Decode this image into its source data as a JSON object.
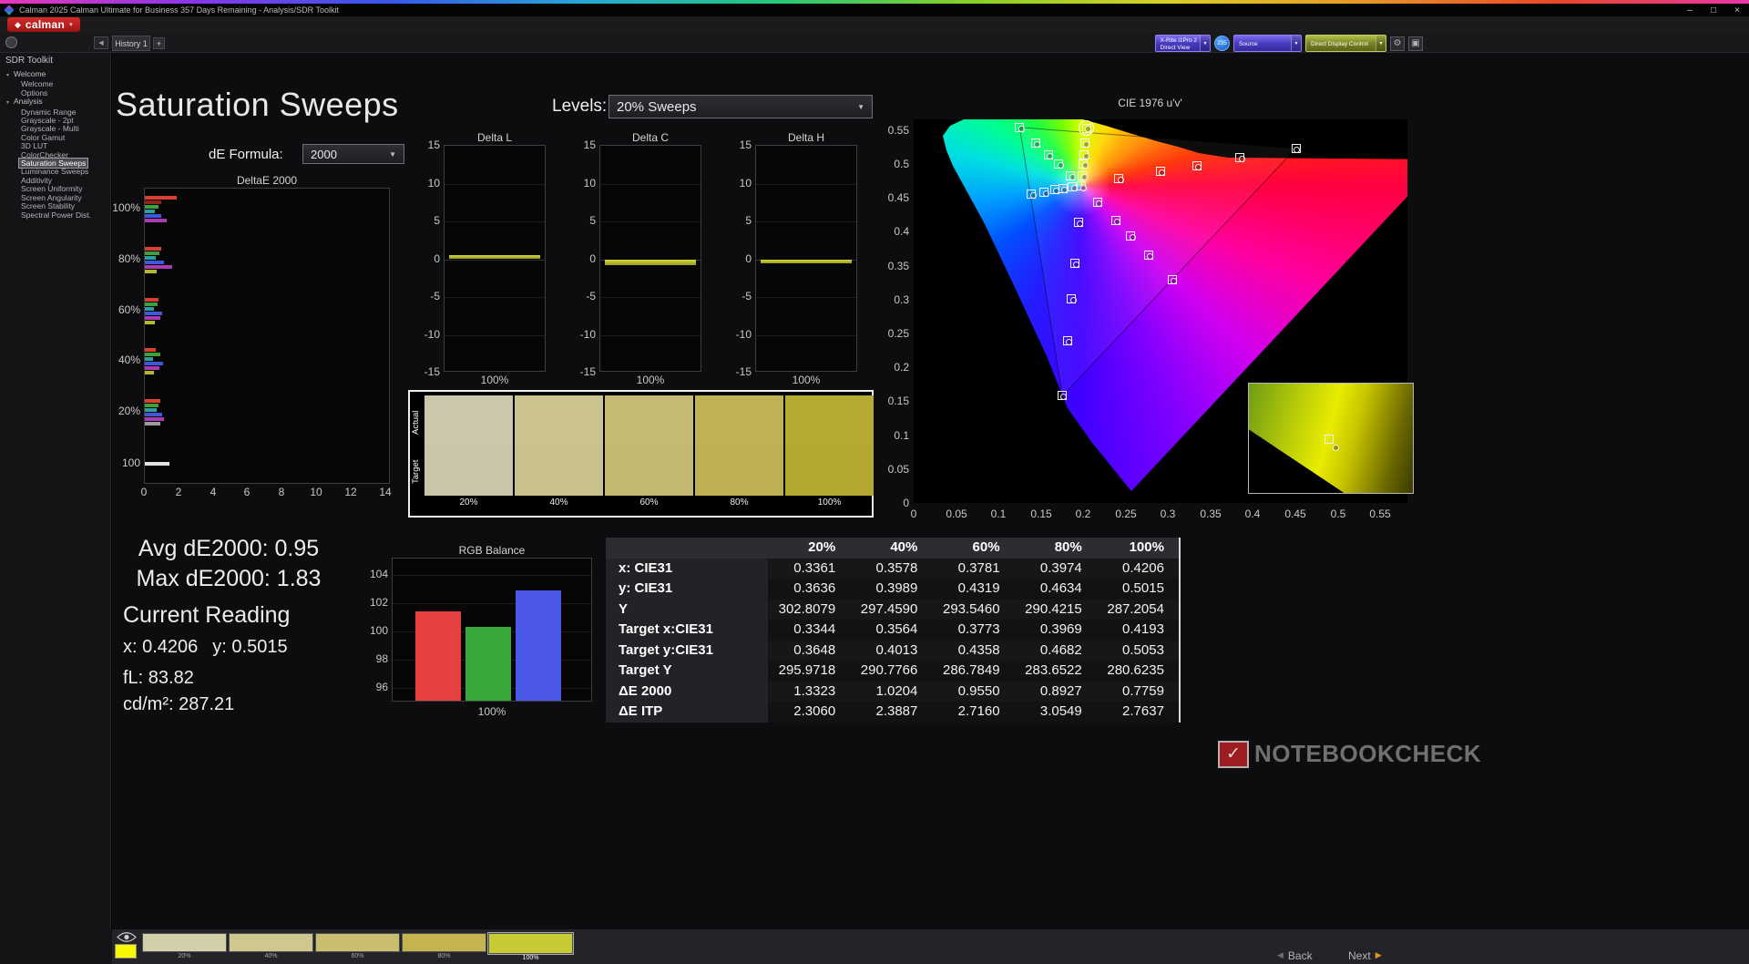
{
  "titlebar": {
    "title": "Calman 2025 Calman Ultimate for Business 357 Days Remaining  - Analysis/SDR Toolkit",
    "minimize": "–",
    "maximize": "□",
    "close": "×"
  },
  "logobar": {
    "brand": "calman",
    "dropdown_arrow": "▾"
  },
  "topstrip": {
    "collapse_arrow": "◀",
    "history_tab": "History 1",
    "add_tab": "+",
    "meter": {
      "line1": "X-Rite i1Pro 2",
      "line2": "Direct View"
    },
    "badge": "235",
    "source": "Source",
    "display_control": "Direct Display Control",
    "gear": "⚙",
    "pattern": "▣"
  },
  "sidebar": {
    "title": "SDR Toolkit",
    "selected": "Saturation Sweeps",
    "groups": [
      {
        "label": "Welcome",
        "items": [
          "Welcome",
          "Options"
        ]
      },
      {
        "label": "Analysis",
        "items": [
          "Dynamic Range",
          "Grayscale - 2pt",
          "Grayscale - Multi",
          "Color Gamut",
          "3D LUT",
          "ColorChecker",
          "Saturation Sweeps",
          "Luminance Sweeps",
          "Additivity",
          "Screen Uniformity",
          "Screen Angularity",
          "Screen Stability",
          "Spectral Power Dist."
        ]
      }
    ]
  },
  "page": {
    "title": "Saturation Sweeps",
    "levels_label": "Levels:",
    "levels_value": "20% Sweeps",
    "de_label": "dE Formula:",
    "de_value": "2000"
  },
  "readings": {
    "avg": "Avg dE2000: 0.95",
    "max": "Max dE2000: 1.83",
    "heading": "Current Reading",
    "x": "x: 0.4206",
    "y": "y: 0.5015",
    "fl": "fL: 83.82",
    "cd": "cd/m²: 287.21"
  },
  "saturation_swatches": {
    "row_labels": [
      "Actual",
      "Target"
    ],
    "levels": [
      "20%",
      "40%",
      "60%",
      "80%",
      "100%"
    ],
    "actual_colors": [
      "#cbc7ac",
      "#cac28f",
      "#c5ba71",
      "#bfb254",
      "#b5ab33"
    ],
    "target_colors": [
      "#c9c5aa",
      "#c8c08d",
      "#c3b86f",
      "#bdb052",
      "#b3a931"
    ]
  },
  "table": {
    "header": [
      "20%",
      "40%",
      "60%",
      "80%",
      "100%"
    ],
    "rows": [
      {
        "label": "x: CIE31",
        "values": [
          "0.3361",
          "0.3578",
          "0.3781",
          "0.3974",
          "0.4206"
        ]
      },
      {
        "label": "y: CIE31",
        "values": [
          "0.3636",
          "0.3989",
          "0.4319",
          "0.4634",
          "0.5015"
        ]
      },
      {
        "label": "Y",
        "values": [
          "302.8079",
          "297.4590",
          "293.5460",
          "290.4215",
          "287.2054"
        ]
      },
      {
        "label": "Target x:CIE31",
        "values": [
          "0.3344",
          "0.3564",
          "0.3773",
          "0.3969",
          "0.4193"
        ]
      },
      {
        "label": "Target y:CIE31",
        "values": [
          "0.3648",
          "0.4013",
          "0.4358",
          "0.4682",
          "0.5053"
        ]
      },
      {
        "label": "Target Y",
        "values": [
          "295.9718",
          "290.7766",
          "286.7849",
          "283.6522",
          "280.6235"
        ]
      },
      {
        "label": "ΔE 2000",
        "values": [
          "1.3323",
          "1.0204",
          "0.9550",
          "0.8927",
          "0.7759"
        ]
      },
      {
        "label": "ΔE ITP",
        "values": [
          "2.3060",
          "2.3887",
          "2.7160",
          "3.0549",
          "2.7637"
        ]
      }
    ]
  },
  "chart_data": [
    {
      "type": "bar",
      "title": "DeltaE 2000",
      "orientation": "horizontal",
      "xlim": [
        0,
        14.3
      ],
      "x_ticks": [
        "0",
        "2",
        "4",
        "6",
        "8",
        "10",
        "12",
        "14"
      ],
      "groups": [
        {
          "label": "100%",
          "bars": [
            {
              "color": "#d84030",
              "value": 1.83
            },
            {
              "color": "#8e2418",
              "value": 0.95
            },
            {
              "color": "#3da03d",
              "value": 0.8
            },
            {
              "color": "#2f9e9e",
              "value": 0.58
            },
            {
              "color": "#3f58d8",
              "value": 0.95
            },
            {
              "color": "#aa3ab2",
              "value": 1.28
            }
          ]
        },
        {
          "label": "80%",
          "bars": [
            {
              "color": "#d84030",
              "value": 0.95
            },
            {
              "color": "#3da03d",
              "value": 0.85
            },
            {
              "color": "#2f9e9e",
              "value": 0.62
            },
            {
              "color": "#3f58d8",
              "value": 1.1
            },
            {
              "color": "#aa3ab2",
              "value": 1.58
            },
            {
              "color": "#b4b82e",
              "value": 0.7
            }
          ]
        },
        {
          "label": "60%",
          "bars": [
            {
              "color": "#d84030",
              "value": 0.8
            },
            {
              "color": "#3da03d",
              "value": 0.72
            },
            {
              "color": "#2f9e9e",
              "value": 0.55
            },
            {
              "color": "#3f58d8",
              "value": 1.0
            },
            {
              "color": "#aa3ab2",
              "value": 0.92
            },
            {
              "color": "#b4b82e",
              "value": 0.6
            }
          ]
        },
        {
          "label": "40%",
          "bars": [
            {
              "color": "#d84030",
              "value": 0.62
            },
            {
              "color": "#3da03d",
              "value": 0.88
            },
            {
              "color": "#2f9e9e",
              "value": 0.48
            },
            {
              "color": "#3f58d8",
              "value": 1.05
            },
            {
              "color": "#aa3ab2",
              "value": 0.82
            },
            {
              "color": "#b4b82e",
              "value": 0.52
            }
          ]
        },
        {
          "label": "20%",
          "bars": [
            {
              "color": "#d84030",
              "value": 0.92
            },
            {
              "color": "#3da03d",
              "value": 0.8
            },
            {
              "color": "#2f9e9e",
              "value": 0.7
            },
            {
              "color": "#3f58d8",
              "value": 1.02
            },
            {
              "color": "#aa3ab2",
              "value": 1.12
            },
            {
              "color": "#9c9c9c",
              "value": 0.88
            }
          ]
        },
        {
          "label": "100",
          "bars": [
            {
              "color": "#e4e4e4",
              "value": 1.45
            }
          ]
        }
      ]
    },
    {
      "type": "bar",
      "title": "Delta L",
      "ylim": [
        -15,
        15
      ],
      "y_ticks": [
        "15",
        "10",
        "5",
        "0",
        "-5",
        "-10",
        "-15"
      ],
      "x_label": "100%",
      "value": 0.6,
      "bar_color": "#b9bd2f"
    },
    {
      "type": "bar",
      "title": "Delta C",
      "ylim": [
        -15,
        15
      ],
      "y_ticks": [
        "15",
        "10",
        "5",
        "0",
        "-5",
        "-10",
        "-15"
      ],
      "x_label": "100%",
      "value": -0.8,
      "bar_color": "#b9bd2f"
    },
    {
      "type": "bar",
      "title": "Delta H",
      "ylim": [
        -15,
        15
      ],
      "y_ticks": [
        "15",
        "10",
        "5",
        "0",
        "-5",
        "-10",
        "-15"
      ],
      "x_label": "100%",
      "value": -0.55,
      "bar_color": "#b9bd2f"
    },
    {
      "type": "bar",
      "title": "RGB Balance",
      "ylim": [
        95,
        104.8
      ],
      "y_ticks": [
        "104",
        "102",
        "100",
        "98",
        "96"
      ],
      "x_label": "100%",
      "series": [
        {
          "name": "Red",
          "color": "#e64040",
          "value": 101.4
        },
        {
          "name": "Green",
          "color": "#3aa83a",
          "value": 100.3
        },
        {
          "name": "Blue",
          "color": "#4c58e8",
          "value": 102.9
        }
      ]
    },
    {
      "type": "scatter",
      "title": "CIE 1976 u'v'",
      "x_ticks": [
        "0",
        "0.05",
        "0.1",
        "0.15",
        "0.2",
        "0.25",
        "0.3",
        "0.35",
        "0.4",
        "0.45",
        "0.5",
        "0.55"
      ],
      "y_ticks": [
        "0.55",
        "0.5",
        "0.45",
        "0.4",
        "0.35",
        "0.3",
        "0.25",
        "0.2",
        "0.15",
        "0.1",
        "0.05",
        "0"
      ],
      "gamut_triangle": [
        [
          0.125,
          0.554
        ],
        [
          0.4507,
          0.5229
        ],
        [
          0.1754,
          0.1579
        ]
      ],
      "targets": [
        [
          0.198,
          0.468
        ],
        [
          0.242,
          0.478
        ],
        [
          0.291,
          0.489
        ],
        [
          0.334,
          0.498
        ],
        [
          0.385,
          0.509
        ],
        [
          0.451,
          0.523
        ],
        [
          0.185,
          0.483
        ],
        [
          0.171,
          0.5
        ],
        [
          0.159,
          0.514
        ],
        [
          0.144,
          0.531
        ],
        [
          0.125,
          0.554
        ],
        [
          0.194,
          0.414
        ],
        [
          0.19,
          0.354
        ],
        [
          0.186,
          0.301
        ],
        [
          0.181,
          0.239
        ],
        [
          0.175,
          0.158
        ],
        [
          0.187,
          0.466
        ],
        [
          0.176,
          0.464
        ],
        [
          0.166,
          0.462
        ],
        [
          0.154,
          0.459
        ],
        [
          0.139,
          0.456
        ],
        [
          0.217,
          0.444
        ],
        [
          0.238,
          0.417
        ],
        [
          0.256,
          0.394
        ],
        [
          0.277,
          0.366
        ],
        [
          0.305,
          0.33
        ],
        [
          0.199,
          0.483
        ],
        [
          0.2,
          0.5
        ],
        [
          0.201,
          0.514
        ],
        [
          0.202,
          0.531
        ],
        [
          0.204,
          0.553
        ]
      ],
      "measurements": [
        [
          0.2,
          0.465
        ],
        [
          0.244,
          0.476
        ],
        [
          0.293,
          0.487
        ],
        [
          0.336,
          0.496
        ],
        [
          0.387,
          0.507
        ],
        [
          0.452,
          0.521
        ],
        [
          0.187,
          0.481
        ],
        [
          0.173,
          0.498
        ],
        [
          0.161,
          0.512
        ],
        [
          0.146,
          0.529
        ],
        [
          0.127,
          0.552
        ],
        [
          0.196,
          0.412
        ],
        [
          0.192,
          0.352
        ],
        [
          0.188,
          0.299
        ],
        [
          0.183,
          0.237
        ],
        [
          0.177,
          0.156
        ],
        [
          0.189,
          0.464
        ],
        [
          0.178,
          0.462
        ],
        [
          0.168,
          0.46
        ],
        [
          0.156,
          0.457
        ],
        [
          0.141,
          0.454
        ],
        [
          0.219,
          0.442
        ],
        [
          0.24,
          0.415
        ],
        [
          0.258,
          0.392
        ],
        [
          0.279,
          0.364
        ],
        [
          0.307,
          0.328
        ],
        [
          0.201,
          0.481
        ],
        [
          0.202,
          0.498
        ],
        [
          0.203,
          0.512
        ],
        [
          0.204,
          0.529
        ],
        [
          0.206,
          0.552
        ]
      ],
      "highlight": [
        0.204,
        0.553
      ],
      "inset": {
        "square": [
          88,
          61
        ],
        "circle": [
          95,
          70
        ]
      }
    }
  ],
  "bottombar": {
    "swatches": [
      {
        "label": "20%",
        "color": "#d3cfab"
      },
      {
        "label": "40%",
        "color": "#cfc88e"
      },
      {
        "label": "60%",
        "color": "#c9bd6e"
      },
      {
        "label": "80%",
        "color": "#c3b450"
      },
      {
        "label": "100%",
        "color": "#c6ca33",
        "selected": true
      }
    ],
    "preview_color": "#f8f800",
    "back": "Back",
    "next": "Next"
  },
  "watermark": {
    "check": "✓",
    "text": "NOTEBOOKCHECK"
  }
}
